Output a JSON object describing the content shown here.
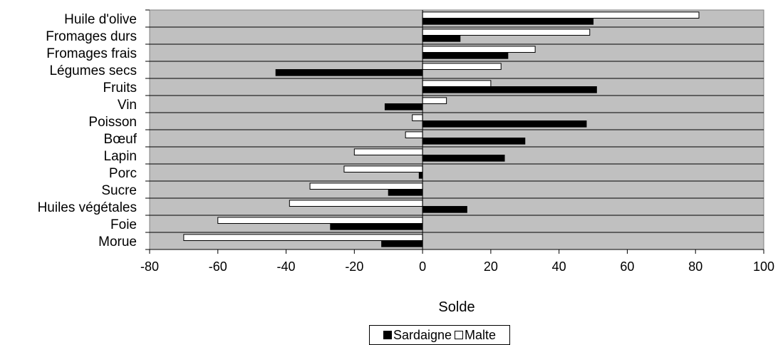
{
  "chart_data": {
    "type": "bar",
    "orientation": "horizontal",
    "categories": [
      "Huile d'olive",
      "Fromages durs",
      "Fromages frais",
      "Légumes secs",
      "Fruits",
      "Vin",
      "Poisson",
      "Bœuf",
      "Lapin",
      "Porc",
      "Sucre",
      "Huiles végétales",
      "Foie",
      "Morue"
    ],
    "series": [
      {
        "name": "Sardaigne",
        "color": "#000000",
        "values": [
          50,
          11,
          25,
          -43,
          51,
          -11,
          48,
          30,
          24,
          -1,
          -10,
          13,
          -27,
          -12
        ]
      },
      {
        "name": "Malte",
        "color": "#ffffff",
        "values": [
          81,
          49,
          33,
          23,
          20,
          7,
          -3,
          -5,
          -20,
          -23,
          -33,
          -39,
          -60,
          -70
        ]
      }
    ],
    "xlabel": "Solde",
    "xlim": [
      -80,
      100
    ],
    "xticks": [
      "-80",
      "-60",
      "-40",
      "-20",
      "0",
      "20",
      "40",
      "60",
      "80",
      "100"
    ],
    "grid": true,
    "plot_background": "#c0c0c0",
    "legend_position": "bottom"
  }
}
